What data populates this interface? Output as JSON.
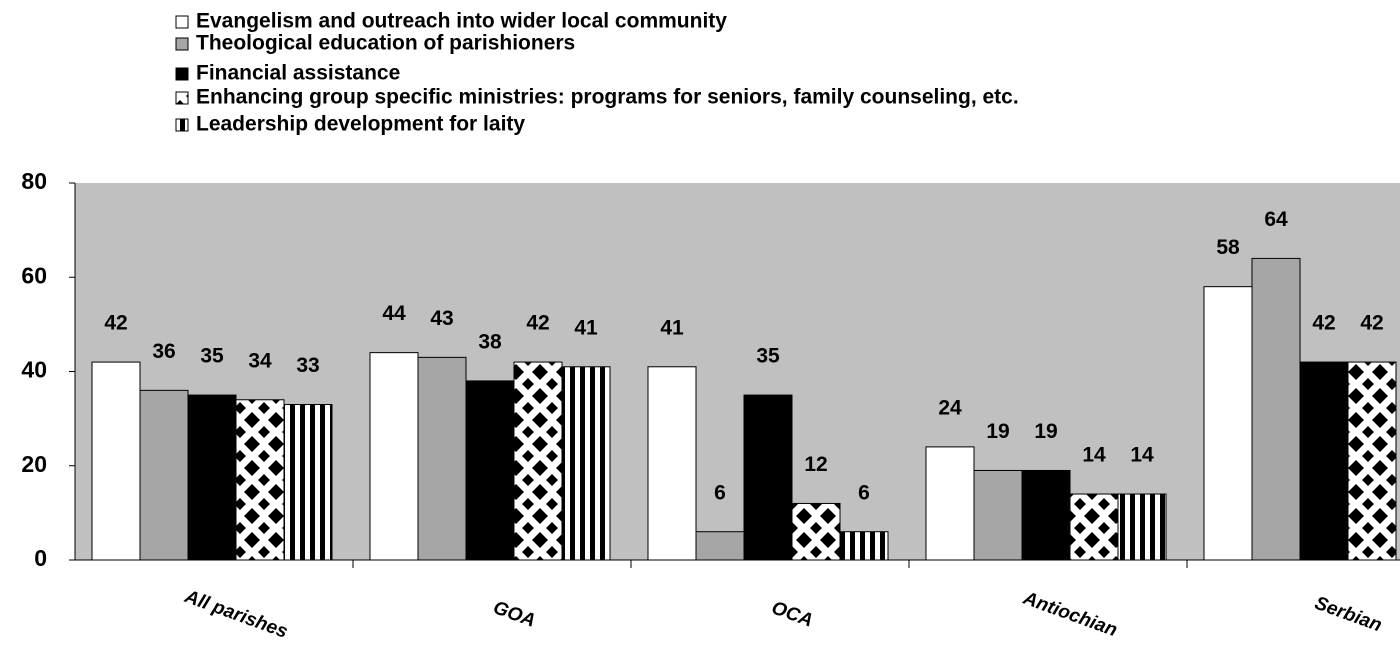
{
  "chart_data": {
    "type": "bar",
    "categories": [
      "All parishes",
      "GOA",
      "OCA",
      "Antiochian",
      "Serbian"
    ],
    "series": [
      {
        "name": "Evangelism and outreach into wider local community",
        "color": "#ffffff",
        "values": [
          42,
          44,
          41,
          24,
          58
        ]
      },
      {
        "name": "Theological education of parishioners",
        "color": "#a6a6a6",
        "values": [
          36,
          43,
          6,
          19,
          64
        ]
      },
      {
        "name": "Financial assistance",
        "color": "#000000",
        "values": [
          35,
          38,
          35,
          19,
          42
        ]
      },
      {
        "name": "Enhancing group specific ministries: programs for seniors, family counseling, etc.",
        "color": "#000000",
        "pattern": "checker",
        "values": [
          34,
          42,
          12,
          14,
          42
        ]
      },
      {
        "name": "Leadership development for laity",
        "color": "#000000",
        "pattern": "vertical-stripes",
        "values": [
          33,
          41,
          6,
          14,
          null
        ]
      }
    ],
    "ylim": [
      0,
      80
    ],
    "yticks": [
      0,
      20,
      40,
      60,
      80
    ]
  }
}
